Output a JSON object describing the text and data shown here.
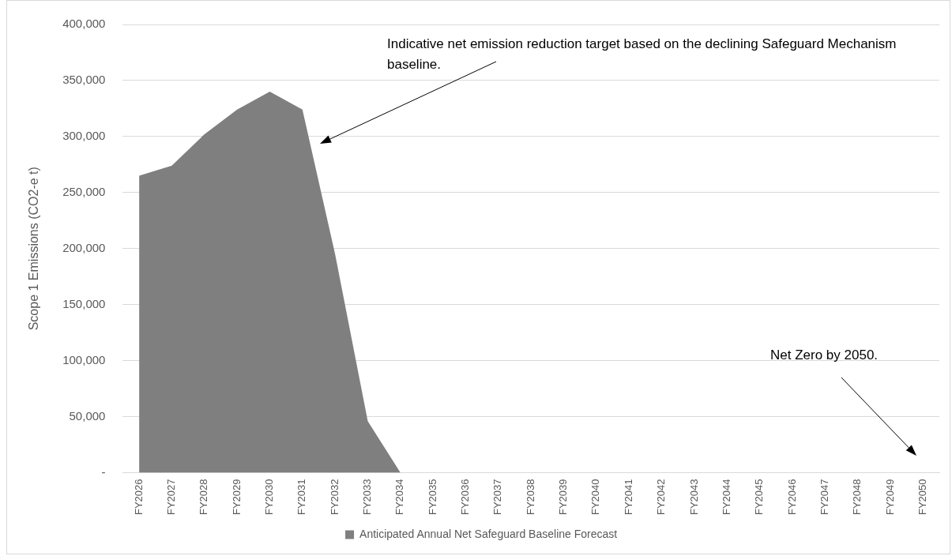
{
  "chart_data": {
    "type": "area",
    "ylabel": "Scope 1 Emissions (CO2-e t)",
    "categories": [
      "FY2026",
      "FY2027",
      "FY2028",
      "FY2029",
      "FY2030",
      "FY2031",
      "FY2032",
      "FY2033",
      "FY2034",
      "FY2035",
      "FY2036",
      "FY2037",
      "FY2038",
      "FY2039",
      "FY2040",
      "FY2041",
      "FY2042",
      "FY2043",
      "FY2044",
      "FY2045",
      "FY2046",
      "FY2047",
      "FY2048",
      "FY2049",
      "FY2050"
    ],
    "series": [
      {
        "name": "Anticipated Annual Net Safeguard Baseline Forecast",
        "color": "#7f7f7f",
        "values": [
          265000,
          274000,
          302000,
          324000,
          340000,
          324000,
          195000,
          46000,
          0,
          0,
          0,
          0,
          0,
          0,
          0,
          0,
          0,
          0,
          0,
          0,
          0,
          0,
          0,
          0,
          0
        ]
      }
    ],
    "ylim": [
      0,
      400000
    ],
    "yticks": [
      {
        "value": 0,
        "label": "-"
      },
      {
        "value": 50000,
        "label": "50,000"
      },
      {
        "value": 100000,
        "label": "100,000"
      },
      {
        "value": 150000,
        "label": "150,000"
      },
      {
        "value": 200000,
        "label": "200,000"
      },
      {
        "value": 250000,
        "label": "250,000"
      },
      {
        "value": 300000,
        "label": "300,000"
      },
      {
        "value": 350000,
        "label": "350,000"
      },
      {
        "value": 400000,
        "label": "400,000"
      }
    ],
    "grid": "y",
    "legend": "bottom",
    "annotations": [
      "Indicative net emission reduction target based on the declining Safeguard Mechanism baseline.",
      "Net Zero by 2050."
    ]
  }
}
